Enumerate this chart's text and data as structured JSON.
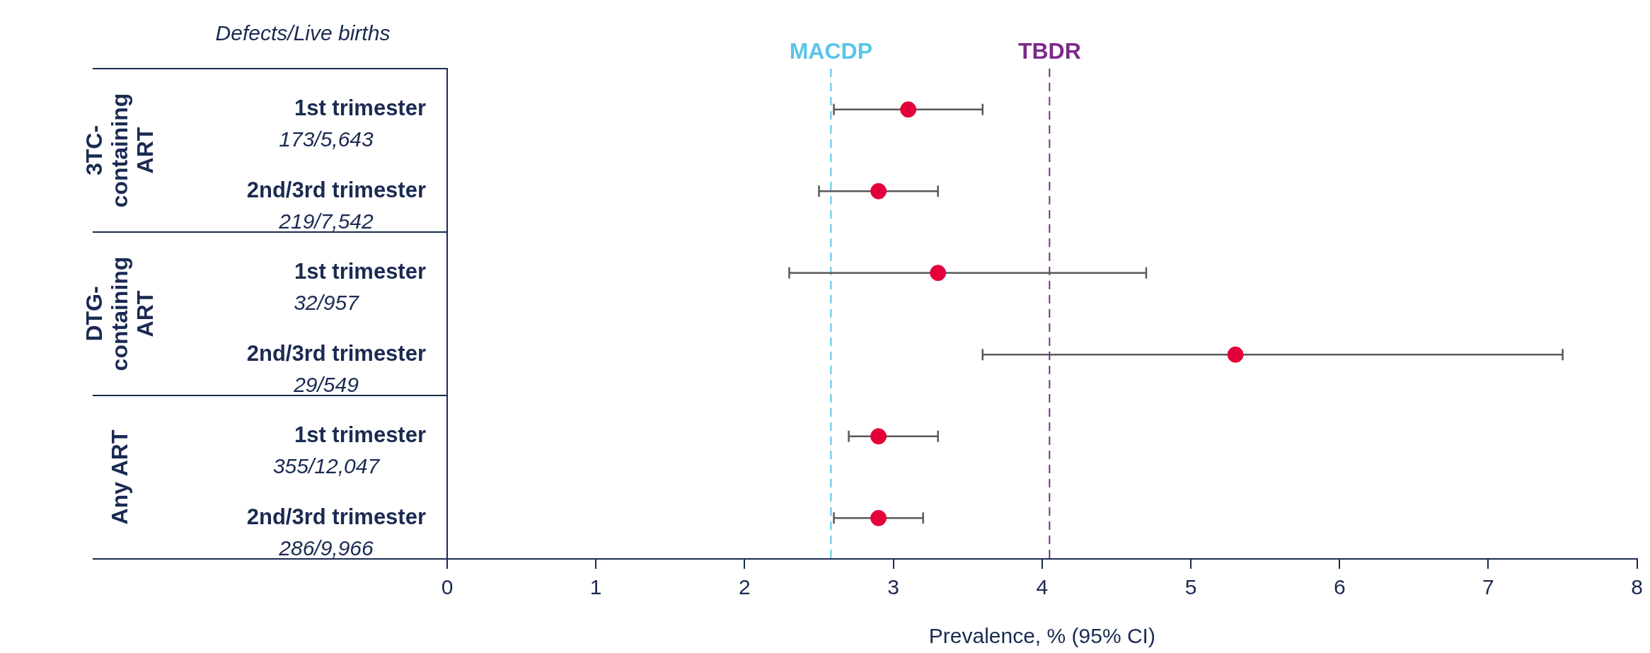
{
  "chart_data": {
    "type": "scatter",
    "orientation": "horizontal",
    "categories": [
      "1st trimester",
      "2nd/3rd trimester",
      "1st trimester",
      "2nd/3rd trimester",
      "1st trimester",
      "2nd/3rd trimester"
    ],
    "values": [
      3.1,
      2.9,
      3.3,
      5.3,
      2.9,
      2.9
    ],
    "errors": [
      [
        2.6,
        3.6
      ],
      [
        2.5,
        3.3
      ],
      [
        2.3,
        4.7
      ],
      [
        3.6,
        7.5
      ],
      [
        2.7,
        3.3
      ],
      [
        2.6,
        3.2
      ]
    ],
    "color": "#e4003b",
    "marker": "circle",
    "xlim": [
      0,
      8
    ],
    "xticks": [
      0,
      1,
      2,
      3,
      4,
      5,
      6,
      7,
      8
    ],
    "xlabel": "Prevalence, % (95% CI)",
    "ref_lines": [
      {
        "axis": "x",
        "value": 2.58,
        "label": "MACDP",
        "color": "#5bc5e8",
        "line_style": "dashed"
      },
      {
        "axis": "x",
        "value": 4.05,
        "label": "TBDR",
        "color": "#7b2a8a",
        "line_style": "dashed"
      }
    ],
    "annotations": [
      "Defects/Live births",
      "173/5,643",
      "219/7,542",
      "32/957",
      "29/549",
      "355/12,047",
      "286/9,966",
      "3TC-containing ART",
      "DTG-containing ART",
      "Any ART"
    ],
    "grid": false,
    "legend": false
  }
}
